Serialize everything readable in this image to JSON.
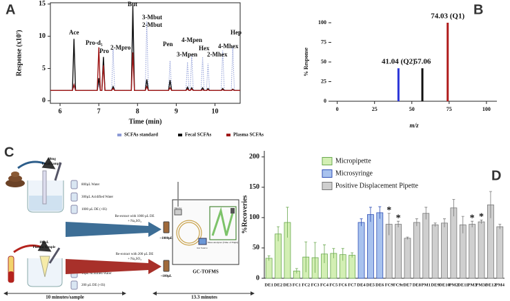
{
  "chart_data": [
    {
      "type": "line",
      "panel_label": "A",
      "xlabel": "Time (min)",
      "ylabel": "Response (x10⁷)",
      "xlim": [
        5.75,
        10.65
      ],
      "ylim": [
        -0.4,
        15.2
      ],
      "xticks": [
        6,
        7,
        8,
        9,
        10
      ],
      "yticks": [
        0,
        5,
        10,
        15
      ],
      "x": [
        5.75,
        6.32,
        6.36,
        6.4,
        6.96,
        7.0,
        7.04,
        7.08,
        7.12,
        7.16,
        7.33,
        7.37,
        7.41,
        7.84,
        7.88,
        7.92,
        8.2,
        8.24,
        8.28,
        8.8,
        8.84,
        8.88,
        9.25,
        9.29,
        9.33,
        9.36,
        9.4,
        9.44,
        9.64,
        9.68,
        9.72,
        9.78,
        9.82,
        9.86,
        10.16,
        10.2,
        10.24,
        10.42,
        10.46,
        10.5,
        10.65
      ],
      "series": [
        {
          "name": "SCFAs standard",
          "color": "#8c9ad6",
          "style": "dotted",
          "values": [
            1.6,
            1.6,
            2.2,
            1.6,
            1.6,
            2.5,
            1.6,
            1.6,
            6.5,
            1.6,
            1.6,
            8,
            1.6,
            1.6,
            12,
            1.6,
            1.6,
            12.3,
            1.6,
            1.6,
            6.2,
            1.6,
            1.6,
            6,
            1.6,
            1.6,
            7,
            1.6,
            1.6,
            6.8,
            1.6,
            1.6,
            5.8,
            1.6,
            1.6,
            7.8,
            1.6,
            1.6,
            8.3,
            1.6,
            1.6
          ]
        },
        {
          "name": "Fecal SCFAs",
          "color": "#111111",
          "style": "solid",
          "values": [
            1.6,
            1.6,
            9.6,
            1.6,
            1.6,
            3.5,
            1.6,
            1.6,
            6.8,
            1.6,
            1.6,
            2.2,
            1.6,
            1.6,
            14.7,
            1.6,
            1.6,
            3.3,
            1.6,
            1.6,
            3.2,
            1.6,
            1.6,
            2.1,
            1.6,
            1.6,
            2,
            1.6,
            1.6,
            2,
            1.6,
            1.6,
            1.9,
            1.6,
            1.6,
            1.9,
            1.6,
            1.6,
            1.8,
            1.6,
            1.6
          ]
        },
        {
          "name": "Plasma SCFAs",
          "color": "#a01818",
          "style": "solid",
          "values": [
            1.6,
            1.6,
            2.5,
            1.6,
            1.6,
            8.3,
            1.6,
            1.6,
            5.5,
            1.6,
            1.6,
            1.9,
            1.6,
            1.6,
            7.5,
            1.6,
            1.6,
            2.2,
            1.6,
            1.6,
            2,
            1.6,
            1.6,
            1.8,
            1.6,
            1.6,
            1.8,
            1.6,
            1.6,
            1.7,
            1.6,
            1.6,
            1.7,
            1.6,
            1.6,
            1.7,
            1.6,
            1.6,
            1.7,
            1.6,
            1.6
          ]
        }
      ],
      "annotations": [
        "Ace",
        "Pro-d₅",
        "Pro",
        "2-Mpro",
        "But",
        "3-Mbut",
        "2-Mbut",
        "Pen",
        "3-Mpen",
        "4-Mpen",
        "Hex",
        "2-Mhex",
        "4-Mhex",
        "Hep"
      ],
      "legend": "bottom"
    },
    {
      "type": "bar",
      "panel_label": "B",
      "xlabel": "m/z",
      "ylabel": "% Response",
      "xlim": [
        -4,
        107
      ],
      "ylim": [
        0,
        100
      ],
      "xticks": [
        0,
        25,
        50,
        75,
        100
      ],
      "yticks": [
        0,
        25,
        50,
        75,
        100
      ],
      "x": [
        41.04,
        57.06,
        74.03
      ],
      "x_labels": [
        "41.04 (Q2)",
        "57.06",
        "74.03 (Q1)"
      ],
      "values": [
        42,
        42,
        100
      ],
      "colors": [
        "#2b35d8",
        "#111111",
        "#b01c1c"
      ]
    },
    {
      "type": "bar",
      "panel_label": "D",
      "ylabel": "%Recoveries",
      "ylim": [
        0,
        210
      ],
      "yticks": [
        0,
        50,
        100,
        150,
        200
      ],
      "categories": [
        "DE1",
        "DE2",
        "DE3",
        "FC1",
        "FC2",
        "FC3",
        "FC4",
        "FC5",
        "FC6",
        "FC7",
        "DE4",
        "DE5",
        "DE6",
        "FC9",
        "FC9r",
        "DE7",
        "DE8",
        "PM1",
        "DE9",
        "DE10",
        "PM2",
        "DE11",
        "PM3",
        "PM3r",
        "DE12",
        "PM4"
      ],
      "series": [
        {
          "name": "Micropipette",
          "color": "#d3efb4",
          "edge": "#6aa84f",
          "values": [
            33,
            73,
            92,
            12,
            35,
            34,
            40,
            41,
            39,
            38,
            null,
            null,
            null,
            null,
            null,
            null,
            null,
            null,
            null,
            null,
            null,
            null,
            null,
            null,
            null,
            null
          ],
          "errors": [
            4,
            12,
            25,
            4,
            25,
            25,
            15,
            8,
            10,
            4,
            null,
            null,
            null,
            null,
            null,
            null,
            null,
            null,
            null,
            null,
            null,
            null,
            null,
            null,
            null,
            null
          ]
        },
        {
          "name": "Microsyringe",
          "color": "#a8c2ee",
          "edge": "#2f4fb5",
          "values": [
            null,
            null,
            null,
            null,
            null,
            null,
            null,
            null,
            null,
            null,
            92,
            105,
            108,
            null,
            null,
            null,
            null,
            null,
            null,
            null,
            null,
            null,
            null,
            null,
            null,
            null
          ],
          "errors": [
            null,
            null,
            null,
            null,
            null,
            null,
            null,
            null,
            null,
            null,
            6,
            12,
            10,
            null,
            null,
            null,
            null,
            null,
            null,
            null,
            null,
            null,
            null,
            null,
            null,
            null
          ]
        },
        {
          "name": "Positive Displacement Pipette",
          "color": "#cfcfcf",
          "edge": "#777777",
          "values": [
            null,
            null,
            null,
            null,
            null,
            null,
            null,
            null,
            null,
            null,
            null,
            null,
            null,
            89,
            89,
            66,
            92,
            107,
            88,
            91,
            116,
            88,
            89,
            93,
            121,
            85
          ],
          "errors": [
            null,
            null,
            null,
            null,
            null,
            null,
            null,
            null,
            null,
            null,
            null,
            null,
            null,
            18,
            5,
            2,
            6,
            10,
            3,
            7,
            14,
            14,
            5,
            3,
            22,
            4
          ]
        }
      ],
      "highlight": [
        13,
        14,
        22,
        23
      ],
      "highlight_color": "#c0141c",
      "highlight_marker": "*",
      "legend": "upper left"
    }
  ],
  "diagram": {
    "panel_label": "C",
    "fecal_sample": [
      "60mg",
      "Fecal Sample"
    ],
    "fecal_reagents": [
      "800µL Water",
      "300µL Acidified Water",
      "1000 µL DE (+IS)"
    ],
    "fecal_reextract": [
      "Re-extract with 1000 µL DE",
      "+ Na₂SO₄"
    ],
    "fecal_volume": "~1000µL",
    "plasma_sample": [
      "100µL",
      "Plasma Sample"
    ],
    "plasma_reextract": [
      "Re-extract with 200 µL DE",
      "+ Na₂SO₄"
    ],
    "plasma_volume": "~100µL",
    "plasma_reagents": [
      "10µL Acidified Water",
      "200 µL DE (+IS)"
    ],
    "instrument": "GC-TOFMS",
    "instrument_parts": [
      "Injector",
      "Ion Source",
      "Mass Analyzer (Time of Flight)"
    ],
    "prep_time": "10 minutes/sample",
    "run_time": "13.3 minutes"
  }
}
